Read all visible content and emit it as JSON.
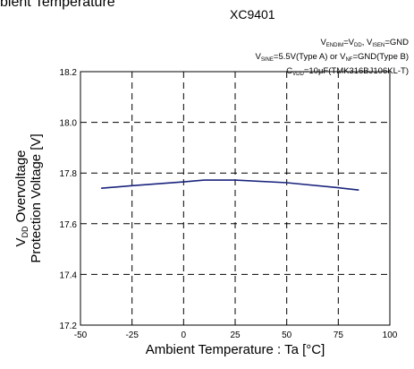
{
  "header": {
    "title_fragment": "bient Temperature",
    "part_number": "XC9401"
  },
  "conditions": {
    "line1": [
      {
        "t": "V"
      },
      {
        "t": "ENDIM",
        "sub": true
      },
      {
        "t": "=V"
      },
      {
        "t": "DD",
        "sub": true
      },
      {
        "t": ", V"
      },
      {
        "t": "ISEN",
        "sub": true
      },
      {
        "t": "=GND"
      }
    ],
    "line2": [
      {
        "t": "V"
      },
      {
        "t": "SINE",
        "sub": true
      },
      {
        "t": "=5.5V(Type A) or V"
      },
      {
        "t": "NF",
        "sub": true
      },
      {
        "t": "=GND(Type B)"
      }
    ],
    "line3": [
      {
        "t": "C"
      },
      {
        "t": "VDD",
        "sub": true
      },
      {
        "t": "=10μF(TMK316BJ106KL-T)"
      }
    ]
  },
  "chart_data": {
    "type": "line",
    "title": "",
    "xlabel": "Ambient Temperature : Ta [°C]",
    "ylabel_line1": [
      {
        "t": "V"
      },
      {
        "t": "DD",
        "sub": true
      },
      {
        "t": " Overvoltage"
      }
    ],
    "ylabel_line2": "Protection Voltage [V]",
    "xlim": [
      -50,
      100
    ],
    "ylim": [
      17.2,
      18.2
    ],
    "xticks": [
      "-50",
      "-25",
      "0",
      "25",
      "50",
      "75",
      "100"
    ],
    "yticks": [
      "17.2",
      "17.4",
      "17.6",
      "17.8",
      "18.0",
      "18.2"
    ],
    "xtick_values": [
      -50,
      -25,
      0,
      25,
      50,
      75,
      100
    ],
    "ytick_values": [
      17.2,
      17.4,
      17.6,
      17.8,
      18.0,
      18.2
    ],
    "grid": true,
    "series": [
      {
        "color": "#1a237e",
        "x": [
          -40,
          -25,
          0,
          10,
          25,
          50,
          75,
          85
        ],
        "y": [
          17.74,
          17.75,
          17.765,
          17.772,
          17.772,
          17.762,
          17.742,
          17.733
        ]
      }
    ]
  }
}
